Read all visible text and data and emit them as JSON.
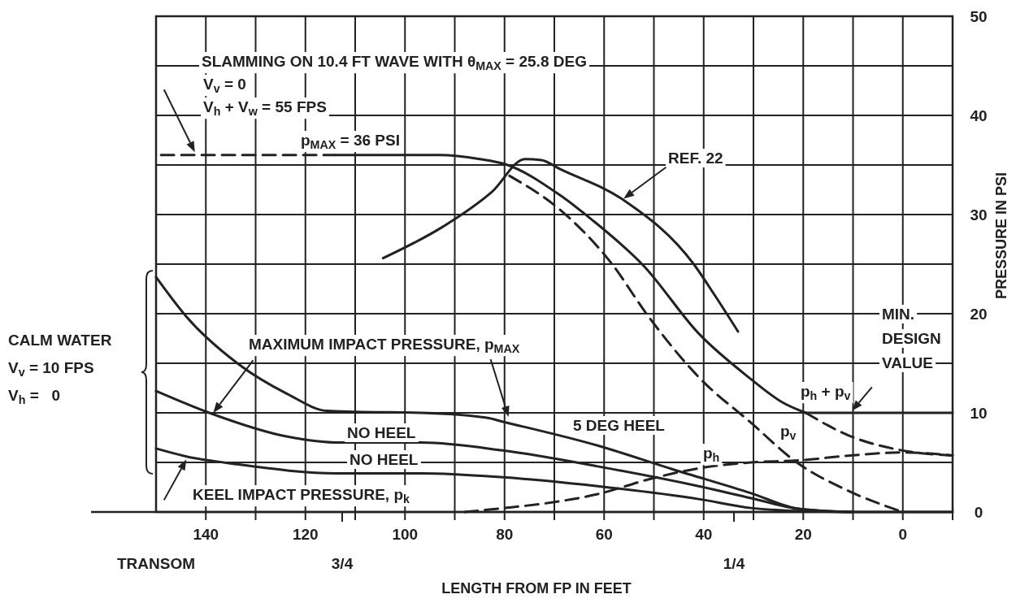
{
  "chart_data": {
    "type": "line",
    "title": "SLAMMING ON 10.4 FT WAVE WITH θ$_{MAX}$ = 25.8 DEG",
    "xlabel": "LENGTH FROM FP IN FEET",
    "ylabel": "PRESSURE IN PSI",
    "xlim": [
      150,
      -10
    ],
    "ylim": [
      0,
      50
    ],
    "xticks": [
      140,
      {
        "value": 130,
        "label": null
      },
      120,
      {
        "value": 110,
        "label": null
      },
      100,
      {
        "value": 90,
        "label": null
      },
      80,
      {
        "value": 70,
        "label": null
      },
      60,
      {
        "value": 50,
        "label": null
      },
      40,
      {
        "value": 30,
        "label": null
      },
      20,
      {
        "value": 10,
        "label": null
      },
      0,
      {
        "value": -10,
        "label": null
      }
    ],
    "yticks": [
      0,
      {
        "value": 5,
        "label": null
      },
      10,
      {
        "value": 15,
        "label": null
      },
      20,
      {
        "value": 25,
        "label": null
      },
      30,
      {
        "value": 35,
        "label": null
      },
      40,
      {
        "value": 45,
        "label": null
      },
      50
    ],
    "grid": true,
    "series": [
      {
        "color": "#222222",
        "line_style": "dashed",
        "x": [
          149,
          114
        ],
        "values": [
          36,
          36
        ]
      },
      {
        "color": "#222222",
        "line_style": "solid",
        "x": [
          114,
          93,
          85,
          80,
          69,
          62.5,
          52,
          41,
          31,
          24,
          19.5
        ],
        "values": [
          36,
          36,
          35.6,
          35.1,
          32,
          29.5,
          24.8,
          18,
          13.6,
          11,
          10
        ]
      },
      {
        "color": "#222222",
        "line_style": "dashed",
        "x": [
          19.5,
          10.8,
          0,
          -10
        ],
        "values": [
          10,
          7.7,
          6.2,
          5.7
        ]
      },
      {
        "color": "#222222",
        "line_style": "solid",
        "x": [
          19.5,
          -10
        ],
        "values": [
          10,
          10
        ]
      },
      {
        "color": "#222222",
        "line_style": "dashed",
        "x": [
          79,
          68.9,
          58.4,
          51.5,
          41,
          30.5,
          21.3,
          10.8,
          0
        ],
        "values": [
          33.9,
          30.5,
          25,
          20,
          13.6,
          9,
          5,
          2.1,
          0
        ]
      },
      {
        "color": "#222222",
        "line_style": "dashed",
        "x": [
          88,
          80,
          70,
          61.3,
          51,
          41,
          30.5,
          21,
          10.5,
          0,
          -10
        ],
        "values": [
          0,
          0.4,
          1,
          1.8,
          3.3,
          4.4,
          5,
          5.2,
          5.7,
          6,
          5.7
        ]
      },
      {
        "color": "#222222",
        "line_style": "solid",
        "x": [
          104.4,
          92.3,
          82.5,
          75.9,
          72.6,
          68.9,
          55.9,
          42,
          37.7,
          33.1
        ],
        "values": [
          25.6,
          28.8,
          32.3,
          35.6,
          35.5,
          34.6,
          31.4,
          25,
          21.8,
          18.2
        ]
      },
      {
        "color": "#222222",
        "line_style": "solid",
        "x": [
          150,
          143.9,
          133.4,
          123.6,
          115.7,
          109.8,
          96.7,
          83.6,
          80.3,
          61.3,
          46.2,
          30.5,
          20.7,
          10,
          0,
          -10
        ],
        "values": [
          23.7,
          19.7,
          14.9,
          11.9,
          10.2,
          10.1,
          10,
          9.5,
          9.1,
          6.7,
          4.3,
          1.9,
          0.3,
          0,
          0,
          0
        ]
      },
      {
        "color": "#222222",
        "line_style": "solid",
        "x": [
          150,
          139.3,
          123.6,
          113.1,
          96.7,
          80.3,
          61.3,
          41,
          30.5,
          20.7,
          10
        ],
        "values": [
          12.2,
          10,
          7.6,
          7,
          7,
          6.2,
          4.6,
          2.6,
          1.4,
          0.3,
          0
        ]
      },
      {
        "color": "#222222",
        "line_style": "solid",
        "x": [
          150,
          143.9,
          133.4,
          113.8,
          96.7,
          80.3,
          61.3,
          41,
          30.5,
          20.7,
          10
        ],
        "values": [
          6.4,
          5.6,
          4.8,
          3.9,
          3.9,
          3.5,
          2.6,
          1.3,
          0.4,
          0.1,
          0
        ]
      }
    ],
    "annotations": [
      "CALM WATER",
      "V$_{v}$ = 10 FPS",
      "V$_{h}$ =   0",
      "V$_{v}$ = 0",
      "V$_{h}$ + V$_{w}$ = 55 FPS",
      "p$_{MAX}$ = 36 PSI",
      "REF. 22",
      "MAXIMUM IMPACT PRESSURE, p$_{MAX}$",
      "NO HEEL",
      "NO HEEL",
      "5 DEG HEEL",
      "KEEL IMPACT PRESSURE, p$_{k}$",
      "p$_{h}$ + p$_{v}$",
      "p$_{v}$",
      "p$_{h}$",
      "MIN.\nDESIGN\nVALUE",
      "TRANSOM",
      "3/4",
      "1/4"
    ]
  }
}
